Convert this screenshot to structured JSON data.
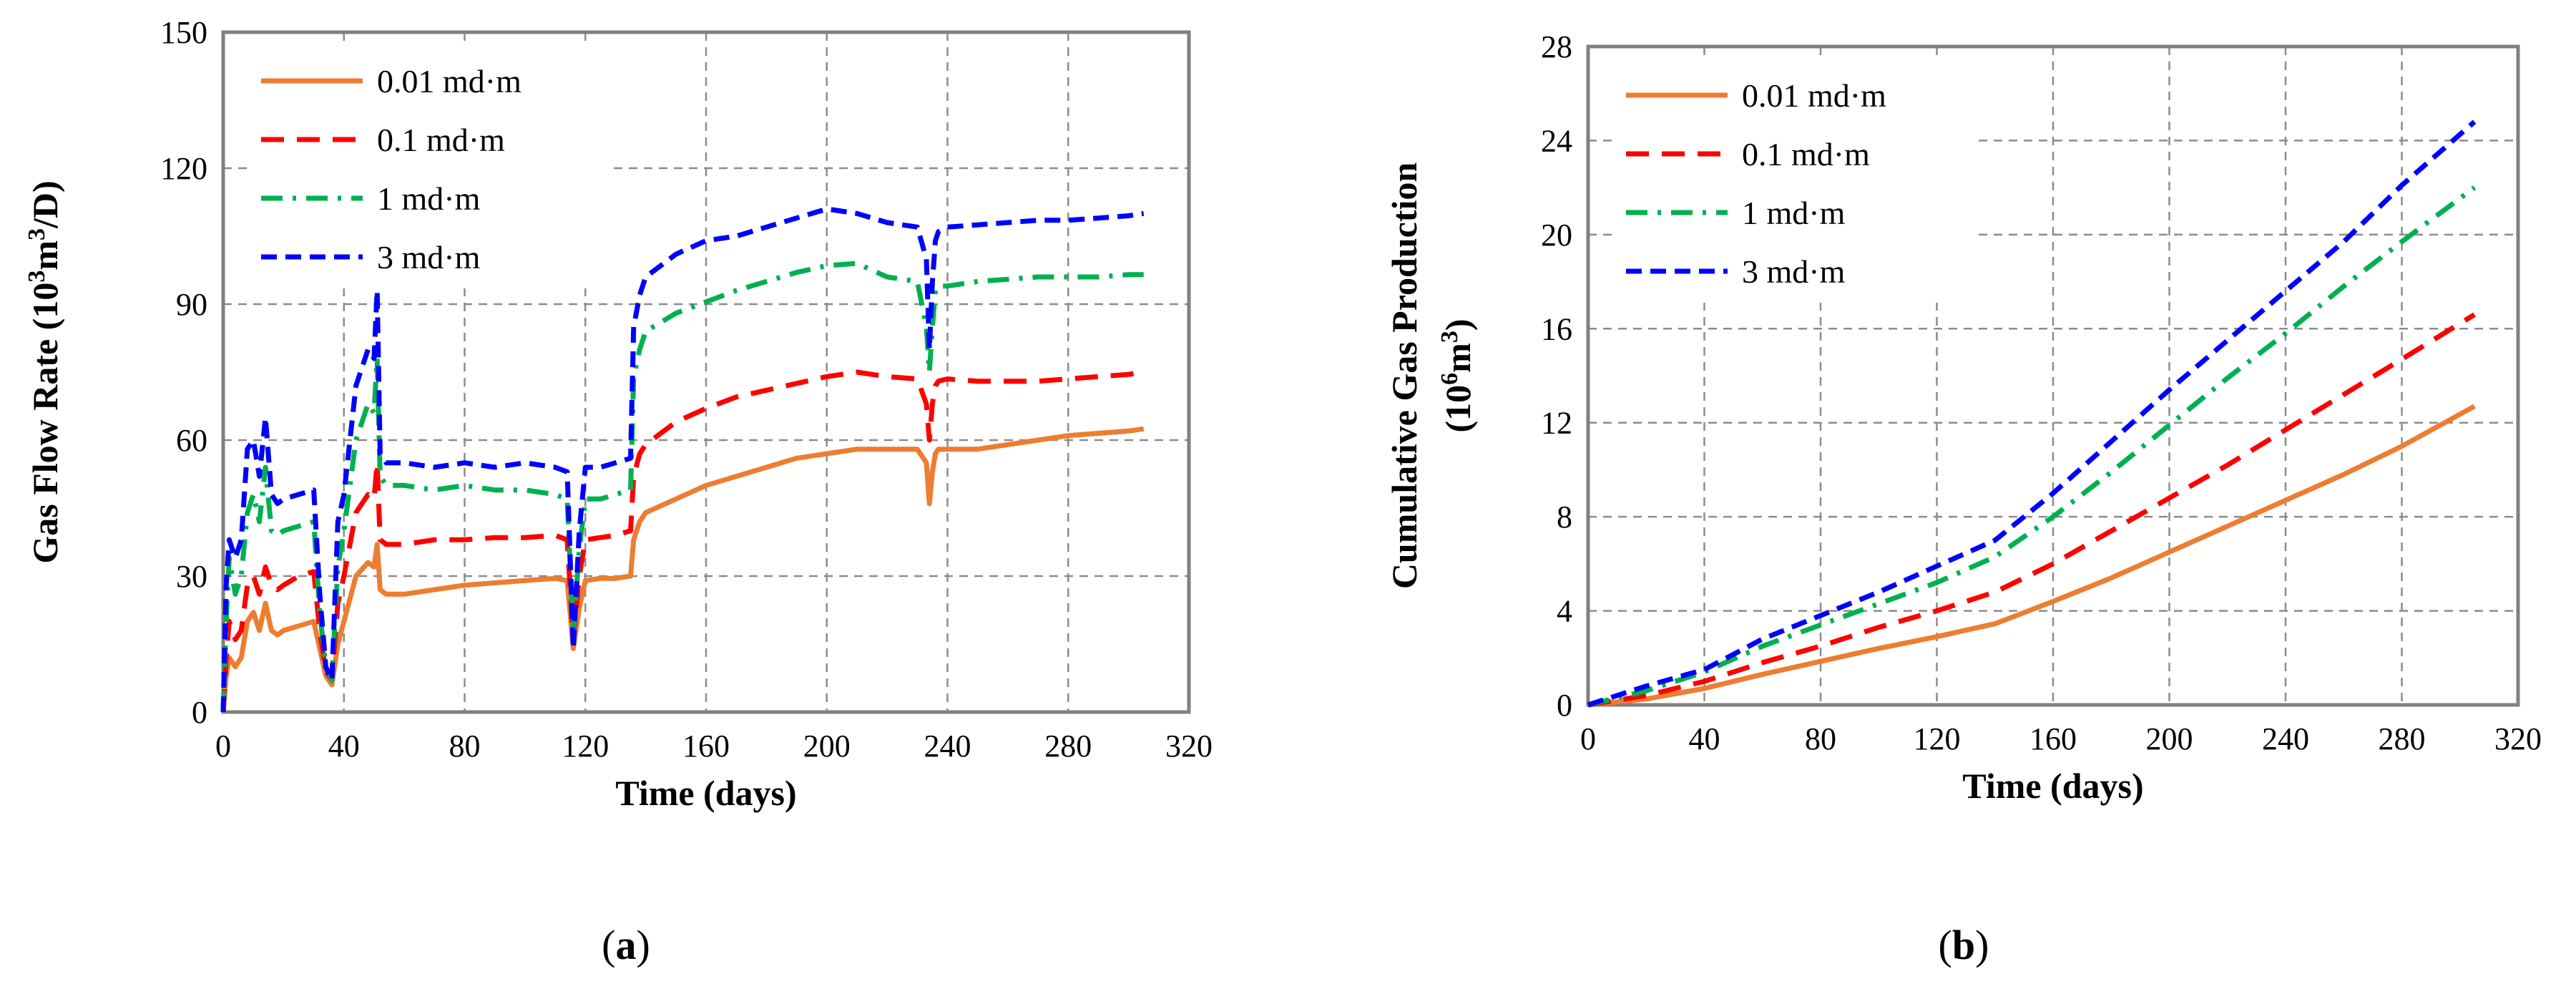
{
  "chart_data": [
    {
      "id": "a",
      "type": "line",
      "caption_label": "a",
      "xlabel": "Time (days)",
      "ylabel_main": "Gas Flow Rate (10",
      "ylabel_sup1": "3",
      "ylabel_mid": "m",
      "ylabel_sup2": "3",
      "ylabel_end": "/D)",
      "xlim": [
        0,
        320
      ],
      "ylim": [
        0,
        150
      ],
      "xticks": [
        0,
        40,
        80,
        120,
        160,
        200,
        240,
        280,
        320
      ],
      "yticks": [
        0,
        30,
        60,
        90,
        120,
        150
      ],
      "legend_position": "top-left",
      "series": [
        {
          "name": "0.01 md·m",
          "color": "#ed7d31",
          "dash": "solid",
          "x": [
            0,
            1,
            2,
            4,
            6,
            8,
            10,
            12,
            14,
            16,
            18,
            20,
            25,
            30,
            32,
            34,
            36,
            38,
            40,
            44,
            48,
            50,
            51,
            52,
            54,
            60,
            70,
            80,
            90,
            100,
            110,
            114,
            116,
            118,
            120,
            125,
            130,
            135,
            136,
            138,
            140,
            150,
            160,
            170,
            180,
            190,
            200,
            210,
            220,
            230,
            233,
            234,
            235,
            236,
            237,
            240,
            250,
            260,
            270,
            280,
            290,
            300,
            305
          ],
          "y": [
            0,
            8,
            12,
            10,
            12,
            20,
            22,
            18,
            24,
            18,
            17,
            18,
            19,
            20,
            14,
            8,
            6,
            15,
            20,
            30,
            33,
            32,
            37,
            27,
            26,
            26,
            27,
            28,
            28.5,
            29,
            29.5,
            29,
            14,
            23,
            29,
            29.5,
            29.5,
            30,
            38,
            42,
            44,
            47,
            50,
            52,
            54,
            56,
            57,
            58,
            58,
            58,
            55,
            46,
            53,
            57,
            58,
            58,
            58,
            59,
            60,
            61,
            61.5,
            62,
            62.5
          ]
        },
        {
          "name": "0.1 md·m",
          "color": "#ff0000",
          "dash": "long",
          "x": [
            0,
            1,
            2,
            4,
            6,
            8,
            10,
            12,
            14,
            16,
            18,
            20,
            25,
            30,
            32,
            34,
            36,
            38,
            40,
            44,
            48,
            50,
            51,
            52,
            54,
            60,
            70,
            80,
            90,
            100,
            110,
            114,
            116,
            118,
            120,
            125,
            130,
            135,
            136,
            138,
            140,
            150,
            160,
            170,
            180,
            190,
            200,
            210,
            220,
            230,
            233,
            234,
            235,
            236,
            237,
            240,
            250,
            260,
            270,
            280,
            290,
            300,
            305
          ],
          "y": [
            0,
            12,
            20,
            16,
            18,
            28,
            30,
            26,
            32,
            28,
            27,
            28,
            30,
            31,
            18,
            9,
            7,
            24,
            30,
            44,
            48,
            47,
            55,
            38,
            37,
            37,
            38,
            38,
            38.5,
            38.5,
            39,
            38,
            16,
            30,
            38,
            38.5,
            39,
            40,
            52,
            57,
            59,
            64,
            67,
            69.5,
            71,
            72.5,
            74,
            75,
            74,
            73.5,
            68,
            60,
            68,
            72,
            73,
            73.5,
            73,
            73,
            73,
            73.5,
            74,
            74.5,
            75
          ]
        },
        {
          "name": "1 md·m",
          "color": "#00b050",
          "dash": "dashdot",
          "x": [
            0,
            1,
            2,
            4,
            6,
            8,
            10,
            12,
            14,
            16,
            18,
            20,
            25,
            30,
            32,
            34,
            36,
            38,
            40,
            44,
            48,
            50,
            51,
            52,
            54,
            60,
            70,
            80,
            90,
            100,
            110,
            114,
            116,
            118,
            120,
            125,
            130,
            135,
            136,
            138,
            140,
            150,
            160,
            170,
            180,
            190,
            200,
            210,
            220,
            230,
            233,
            234,
            235,
            236,
            237,
            240,
            250,
            260,
            270,
            280,
            290,
            300,
            305
          ],
          "y": [
            0,
            20,
            34,
            26,
            30,
            44,
            48,
            42,
            54,
            40,
            39,
            40,
            41,
            42,
            22,
            10,
            7,
            32,
            40,
            60,
            68,
            66,
            78,
            52,
            50,
            50,
            49,
            50,
            49,
            49,
            48,
            47,
            17,
            36,
            47,
            47,
            48,
            49,
            74,
            80,
            84,
            88,
            90.5,
            93,
            95,
            97,
            98.5,
            99,
            96,
            95,
            85,
            75,
            85,
            93,
            94,
            94,
            95,
            95.5,
            96,
            96,
            96,
            96.5,
            96.5
          ]
        },
        {
          "name": "3 md·m",
          "color": "#0000ff",
          "dash": "short",
          "x": [
            0,
            1,
            2,
            4,
            6,
            8,
            10,
            12,
            14,
            16,
            18,
            20,
            25,
            30,
            32,
            34,
            36,
            38,
            40,
            44,
            48,
            50,
            51,
            52,
            54,
            60,
            70,
            80,
            90,
            100,
            110,
            114,
            116,
            118,
            120,
            125,
            130,
            135,
            136,
            138,
            140,
            150,
            160,
            170,
            180,
            190,
            200,
            210,
            220,
            230,
            233,
            234,
            235,
            236,
            237,
            240,
            250,
            260,
            270,
            280,
            290,
            300,
            305
          ],
          "y": [
            0,
            28,
            38,
            34,
            38,
            58,
            60,
            52,
            65,
            48,
            46,
            47,
            48,
            49,
            26,
            10,
            7,
            42,
            48,
            72,
            80,
            78,
            93,
            57,
            55,
            55,
            54,
            55,
            54,
            55,
            54,
            53,
            14,
            40,
            54,
            54,
            55,
            56,
            85,
            92,
            96,
            101,
            104,
            105,
            107,
            109,
            111,
            110,
            108,
            107,
            100,
            80,
            95,
            104,
            106,
            107,
            107.5,
            108,
            108.5,
            108.5,
            109,
            109.5,
            110
          ]
        }
      ]
    },
    {
      "id": "b",
      "type": "line",
      "caption_label": "b",
      "xlabel": "Time (days)",
      "ylabel_line1": "Cumulative Gas Production",
      "ylabel_line2_main": "(10",
      "ylabel_line2_sup1": "6",
      "ylabel_line2_mid": "m",
      "ylabel_line2_sup2": "3",
      "ylabel_line2_end": ")",
      "xlim": [
        0,
        320
      ],
      "ylim": [
        0,
        28
      ],
      "xticks": [
        0,
        40,
        80,
        120,
        160,
        200,
        240,
        280,
        320
      ],
      "yticks": [
        0,
        4,
        8,
        12,
        16,
        20,
        24,
        28
      ],
      "legend_position": "top-left",
      "series": [
        {
          "name": "0.01 md·m",
          "color": "#ed7d31",
          "dash": "solid",
          "x": [
            0,
            20,
            40,
            60,
            80,
            100,
            120,
            140,
            160,
            180,
            200,
            220,
            240,
            260,
            280,
            305
          ],
          "y": [
            0,
            0.25,
            0.7,
            1.3,
            1.85,
            2.4,
            2.9,
            3.45,
            4.4,
            5.4,
            6.5,
            7.6,
            8.7,
            9.8,
            11.0,
            12.7
          ]
        },
        {
          "name": "0.1 md·m",
          "color": "#ff0000",
          "dash": "long",
          "x": [
            0,
            20,
            40,
            60,
            80,
            100,
            120,
            140,
            160,
            180,
            200,
            220,
            240,
            260,
            280,
            305
          ],
          "y": [
            0,
            0.4,
            1.0,
            1.8,
            2.5,
            3.3,
            4.0,
            4.8,
            6.0,
            7.4,
            8.8,
            10.2,
            11.7,
            13.2,
            14.7,
            16.6
          ]
        },
        {
          "name": "1 md·m",
          "color": "#00b050",
          "dash": "dashdot",
          "x": [
            0,
            20,
            40,
            60,
            80,
            100,
            120,
            140,
            160,
            180,
            200,
            220,
            240,
            260,
            280,
            305
          ],
          "y": [
            0,
            0.6,
            1.4,
            2.5,
            3.4,
            4.3,
            5.2,
            6.3,
            8.0,
            9.9,
            11.9,
            13.9,
            15.8,
            17.8,
            19.7,
            22.0
          ]
        },
        {
          "name": "3 md·m",
          "color": "#0000ff",
          "dash": "short",
          "x": [
            0,
            20,
            40,
            60,
            80,
            100,
            120,
            140,
            160,
            180,
            200,
            220,
            240,
            260,
            280,
            305
          ],
          "y": [
            0,
            0.8,
            1.5,
            2.8,
            3.8,
            4.8,
            5.9,
            7.0,
            9.0,
            11.2,
            13.4,
            15.5,
            17.6,
            19.7,
            22.1,
            24.8
          ]
        }
      ]
    }
  ]
}
